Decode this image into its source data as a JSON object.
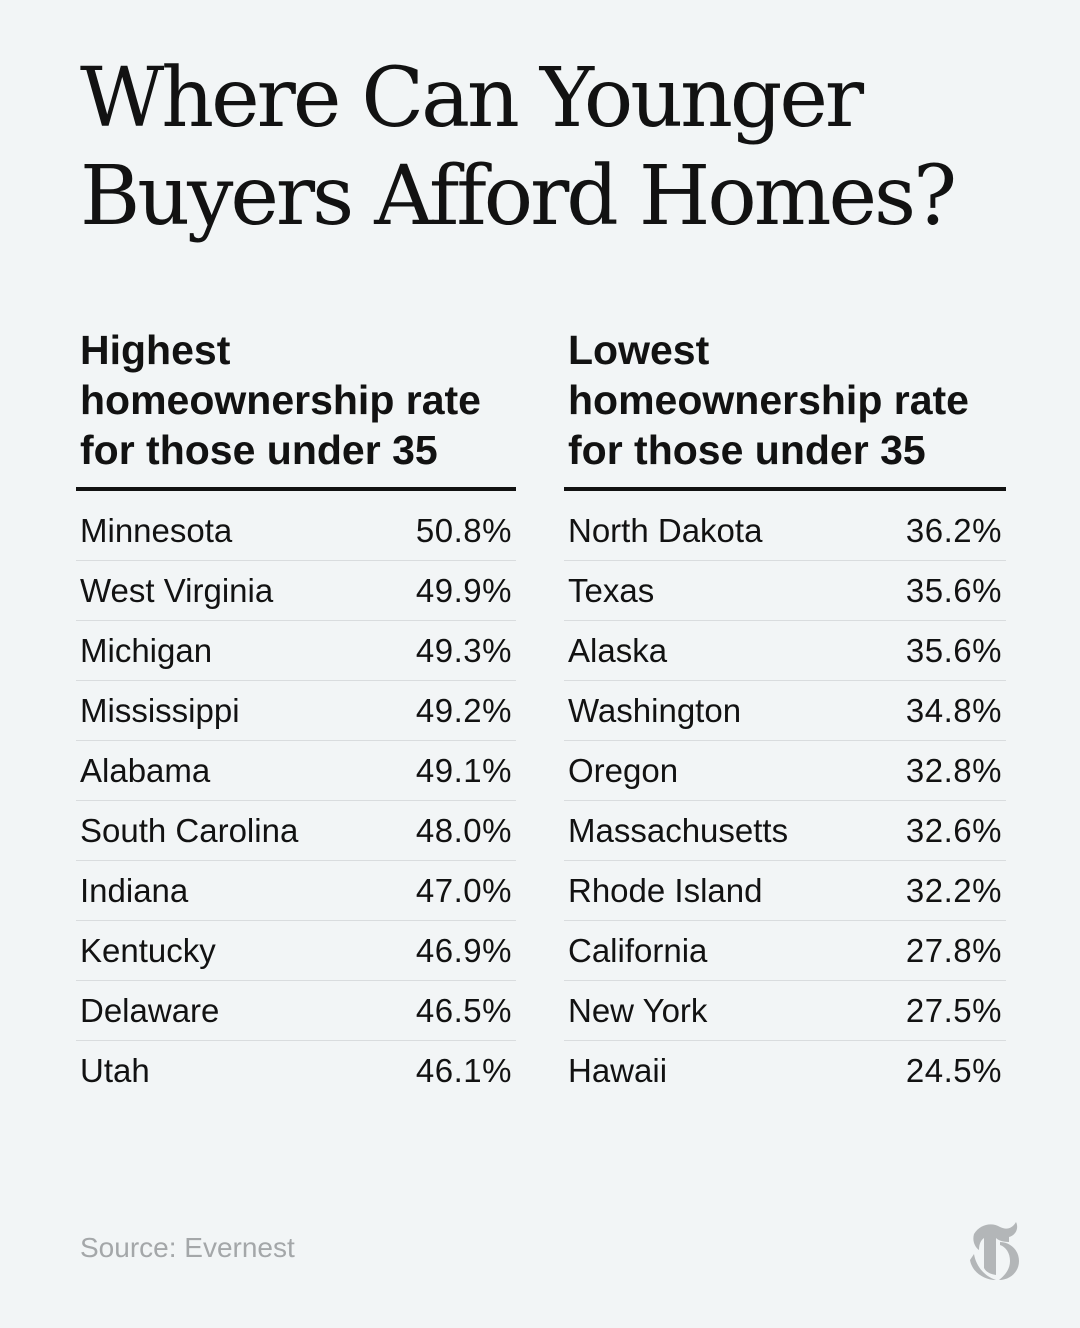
{
  "title": {
    "line1": "Where Can Younger",
    "line2": "Buyers Afford Homes?"
  },
  "chart_data": [
    {
      "type": "table",
      "header": {
        "line1": "Highest",
        "line2": "homeownership rate",
        "line3": "for those under 35"
      },
      "rows": [
        {
          "state": "Minnesota",
          "value": "50.8%"
        },
        {
          "state": "West Virginia",
          "value": "49.9%"
        },
        {
          "state": "Michigan",
          "value": "49.3%"
        },
        {
          "state": "Mississippi",
          "value": "49.2%"
        },
        {
          "state": "Alabama",
          "value": "49.1%"
        },
        {
          "state": "South Carolina",
          "value": "48.0%"
        },
        {
          "state": "Indiana",
          "value": "47.0%"
        },
        {
          "state": "Kentucky",
          "value": "46.9%"
        },
        {
          "state": "Delaware",
          "value": "46.5%"
        },
        {
          "state": "Utah",
          "value": "46.1%"
        }
      ]
    },
    {
      "type": "table",
      "header": {
        "line1": "Lowest",
        "line2": "homeownership rate",
        "line3": "for those under 35"
      },
      "rows": [
        {
          "state": "North Dakota",
          "value": "36.2%"
        },
        {
          "state": "Texas",
          "value": "35.6%"
        },
        {
          "state": "Alaska",
          "value": "35.6%"
        },
        {
          "state": "Washington",
          "value": "34.8%"
        },
        {
          "state": "Oregon",
          "value": "32.8%"
        },
        {
          "state": "Massachusetts",
          "value": "32.6%"
        },
        {
          "state": "Rhode Island",
          "value": "32.2%"
        },
        {
          "state": "California",
          "value": "27.8%"
        },
        {
          "state": "New York",
          "value": "27.5%"
        },
        {
          "state": "Hawaii",
          "value": "24.5%"
        }
      ]
    }
  ],
  "source": "Source: Evernest",
  "logo": {
    "icon": "nyt-t-logo-icon",
    "color": "#b3b6b8"
  },
  "colors": {
    "background": "#f2f5f6",
    "text": "#121212",
    "source_text": "#a4a7a9",
    "row_divider": "#d9dcde"
  }
}
